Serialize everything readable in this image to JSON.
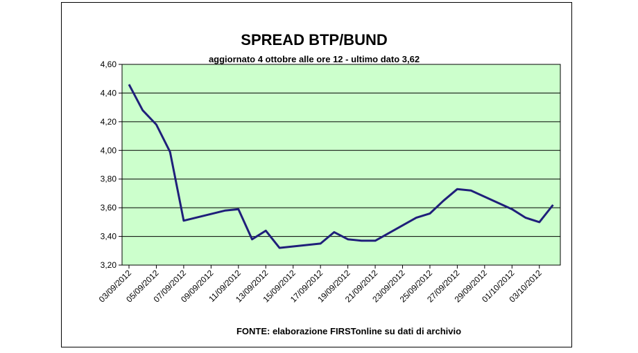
{
  "chart_data": {
    "type": "line",
    "title": "SPREAD  BTP/BUND",
    "subtitle": "aggiornato 4 ottobre alle ore 12 - ultimo dato 3,62",
    "source": "FONTE: elaborazione FIRSTonline su dati di archivio",
    "ylim": [
      3.2,
      4.6
    ],
    "y_ticks": [
      "3,20",
      "3,40",
      "3,60",
      "3,80",
      "4,00",
      "4,20",
      "4,40",
      "4,60"
    ],
    "x_tick_labels": [
      "03/09/2012",
      "05/09/2012",
      "07/09/2012",
      "09/09/2012",
      "11/09/2012",
      "13/09/2012",
      "15/09/2012",
      "17/09/2012",
      "19/09/2012",
      "21/09/2012",
      "23/09/2012",
      "25/09/2012",
      "27/09/2012",
      "29/09/2012",
      "01/10/2012",
      "03/10/2012"
    ],
    "x": [
      "03/09/2012",
      "04/09/2012",
      "05/09/2012",
      "06/09/2012",
      "07/09/2012",
      "10/09/2012",
      "11/09/2012",
      "12/09/2012",
      "13/09/2012",
      "14/09/2012",
      "17/09/2012",
      "18/09/2012",
      "19/09/2012",
      "20/09/2012",
      "21/09/2012",
      "24/09/2012",
      "25/09/2012",
      "26/09/2012",
      "27/09/2012",
      "28/09/2012",
      "01/10/2012",
      "02/10/2012",
      "03/10/2012",
      "04/10/2012"
    ],
    "series": [
      {
        "values": [
          4.46,
          4.28,
          4.18,
          3.99,
          3.51,
          3.58,
          3.59,
          3.38,
          3.44,
          3.32,
          3.35,
          3.43,
          3.38,
          3.37,
          3.37,
          3.53,
          3.56,
          3.65,
          3.73,
          3.72,
          3.59,
          3.53,
          3.5,
          3.62
        ],
        "color": "#1F1F7A"
      }
    ],
    "grid": true,
    "plot_background": "#CCFFCC"
  }
}
